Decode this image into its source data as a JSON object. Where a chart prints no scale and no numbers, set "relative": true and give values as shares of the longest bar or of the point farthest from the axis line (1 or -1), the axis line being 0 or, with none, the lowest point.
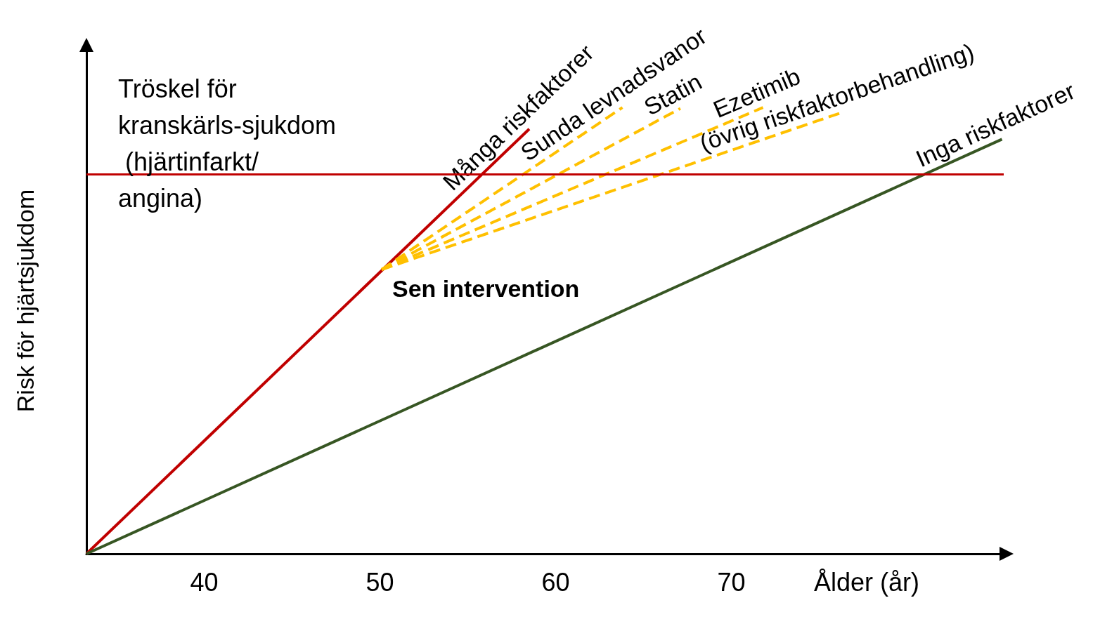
{
  "chart_data": {
    "type": "line",
    "xlabel": "Ålder (år)",
    "ylabel": "Risk för hjärtsjukdom",
    "relative": true,
    "xlim": [
      33.3,
      85.5
    ],
    "xticks": [
      40,
      50,
      60,
      70
    ],
    "grid": false,
    "legend": false,
    "marker": "none",
    "ref_lines": [
      {
        "axis": "y",
        "value": 0.849,
        "label": "Tröskel för kranskärls-sjukdom (hjärtinfarkt/angina)",
        "color": "#c00000"
      }
    ],
    "annotations": [
      {
        "text": "Sen intervention",
        "x": 50.1,
        "y": 0.637
      }
    ],
    "series": [
      {
        "name": "Många riskfaktorer",
        "color": "#c00000",
        "x": [
          33.3,
          58.5
        ],
        "values": [
          0,
          0.952
        ]
      },
      {
        "name": "Sunda levnadsvanor",
        "color": "#ffc000",
        "line_style": "dashed",
        "x": [
          50.1,
          63.8
        ],
        "values": [
          0.637,
          1.0
        ]
      },
      {
        "name": "Statin",
        "color": "#ffc000",
        "line_style": "dashed",
        "x": [
          50.1,
          67.1
        ],
        "values": [
          0.637,
          0.998
        ]
      },
      {
        "name": "Ezetimib",
        "color": "#ffc000",
        "line_style": "dashed",
        "x": [
          50.1,
          71.8
        ],
        "values": [
          0.637,
          1.0
        ]
      },
      {
        "name": "(övrig riskfaktorbehandling)",
        "color": "#ffc000",
        "line_style": "dashed",
        "x": [
          50.1,
          76.3
        ],
        "values": [
          0.637,
          0.989
        ]
      },
      {
        "name": "Inga riskfaktorer",
        "color": "#375623",
        "x": [
          33.3,
          85.4
        ],
        "values": [
          0,
          0.929
        ]
      }
    ]
  }
}
